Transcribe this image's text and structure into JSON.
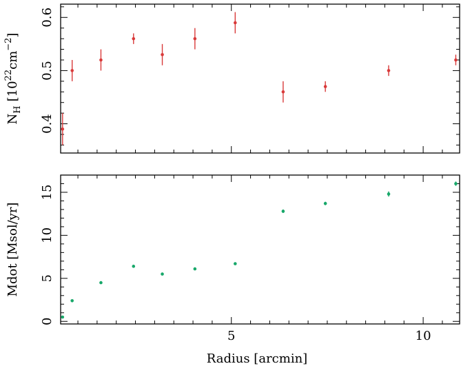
{
  "chart_data": [
    {
      "type": "scatter",
      "ylabel": "N_H [10^22 cm^-2]",
      "ylabel_parts": {
        "base": "N",
        "sub": "H",
        "open": "[10",
        "sup1": "22",
        "unit": "cm",
        "sup2": "−2",
        "close": "]"
      },
      "xlim": [
        0.55,
        10.95
      ],
      "ylim": [
        0.345,
        0.625
      ],
      "y_major_ticks": [
        0.4,
        0.5,
        0.6
      ],
      "y_major_labels": [
        "0.4",
        "0.5",
        "0.6"
      ],
      "x_major_ticks": [
        5,
        10
      ],
      "color": "#d93a3a",
      "series": [
        {
          "x": [
            0.6,
            0.85,
            1.6,
            2.45,
            3.2,
            4.05,
            5.1,
            6.35,
            7.45,
            9.1,
            10.85
          ],
          "y": [
            0.39,
            0.5,
            0.52,
            0.56,
            0.53,
            0.56,
            0.59,
            0.46,
            0.47,
            0.5,
            0.52
          ],
          "yerr": [
            0.03,
            0.02,
            0.02,
            0.01,
            0.02,
            0.02,
            0.02,
            0.02,
            0.01,
            0.01,
            0.01
          ]
        }
      ]
    },
    {
      "type": "scatter",
      "xlabel": "Radius [arcmin]",
      "ylabel": "Mdot [Msol/yr]",
      "xlim": [
        0.55,
        10.95
      ],
      "ylim": [
        -0.3,
        17.0
      ],
      "y_major_ticks": [
        0,
        5,
        10,
        15
      ],
      "y_major_labels": [
        "0",
        "5",
        "10",
        "15"
      ],
      "x_major_ticks": [
        5,
        10
      ],
      "x_major_labels": [
        "5",
        "10"
      ],
      "color": "#18a86a",
      "series": [
        {
          "x": [
            0.6,
            0.85,
            1.6,
            2.45,
            3.2,
            4.05,
            5.1,
            6.35,
            7.45,
            9.1,
            10.85
          ],
          "y": [
            0.5,
            2.4,
            4.5,
            6.4,
            5.5,
            6.1,
            6.7,
            12.8,
            13.7,
            14.8,
            16.0
          ],
          "yerr": [
            0.1,
            0.15,
            0.1,
            0.15,
            0.1,
            0.15,
            0.15,
            0.2,
            0.2,
            0.3,
            0.25
          ]
        }
      ]
    }
  ]
}
